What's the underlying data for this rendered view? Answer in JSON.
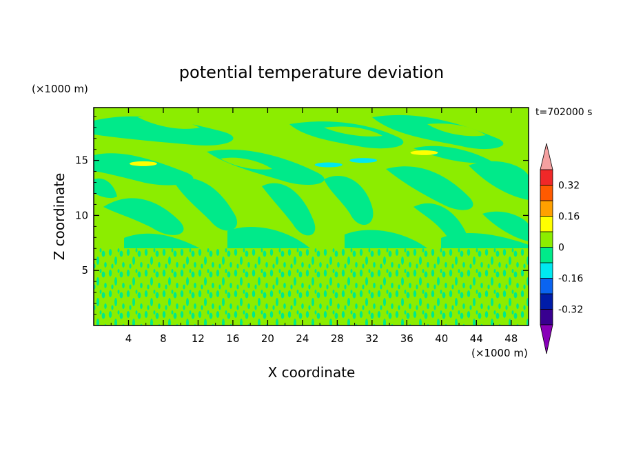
{
  "chart_data": {
    "type": "heatmap",
    "title": "potential temperature deviation",
    "xlabel": "X coordinate",
    "ylabel": "Z coordinate",
    "x_unit": "(×1000 m)",
    "y_unit": "(×1000 m)",
    "time_label": "t=702000 s",
    "xlim": [
      0,
      50
    ],
    "ylim": [
      0,
      19.8
    ],
    "x_ticks": [
      4,
      8,
      12,
      16,
      20,
      24,
      28,
      32,
      36,
      40,
      44,
      48
    ],
    "y_ticks": [
      5,
      10,
      15
    ],
    "colorbar": {
      "levels": [
        -0.4,
        -0.32,
        -0.24,
        -0.16,
        -0.08,
        0,
        0.08,
        0.16,
        0.24,
        0.32,
        0.4
      ],
      "labels": [
        "0.32",
        "0.16",
        "0",
        "-0.16",
        "-0.32"
      ],
      "label_values": [
        0.32,
        0.16,
        0,
        -0.16,
        -0.32
      ],
      "colors": [
        "#380090",
        "#001ca8",
        "#0a64f0",
        "#00e8f0",
        "#00ea8a",
        "#8ced00",
        "#ffff00",
        "#ffa000",
        "#ff5a00",
        "#f02828"
      ],
      "under_color": "#8800b8",
      "over_color": "#f4a0a0",
      "extend": "both"
    },
    "fields": {
      "background_bands": [
        {
          "z_range": [
            0,
            7.5
          ],
          "description": "dense small-scale mix",
          "values": [
            0.04,
            -0.04
          ]
        },
        {
          "z_range": [
            7.5,
            19.8
          ],
          "description": "larger tilted structures",
          "values": [
            0.04,
            -0.04
          ]
        }
      ],
      "extrema": [
        {
          "x": 5.7,
          "z": 14.7,
          "value": 0.12
        },
        {
          "x": 38,
          "z": 15.7,
          "value": 0.12
        },
        {
          "x": 27,
          "z": 14.6,
          "value": -0.1
        },
        {
          "x": 31,
          "z": 15.0,
          "value": -0.1
        }
      ]
    }
  }
}
